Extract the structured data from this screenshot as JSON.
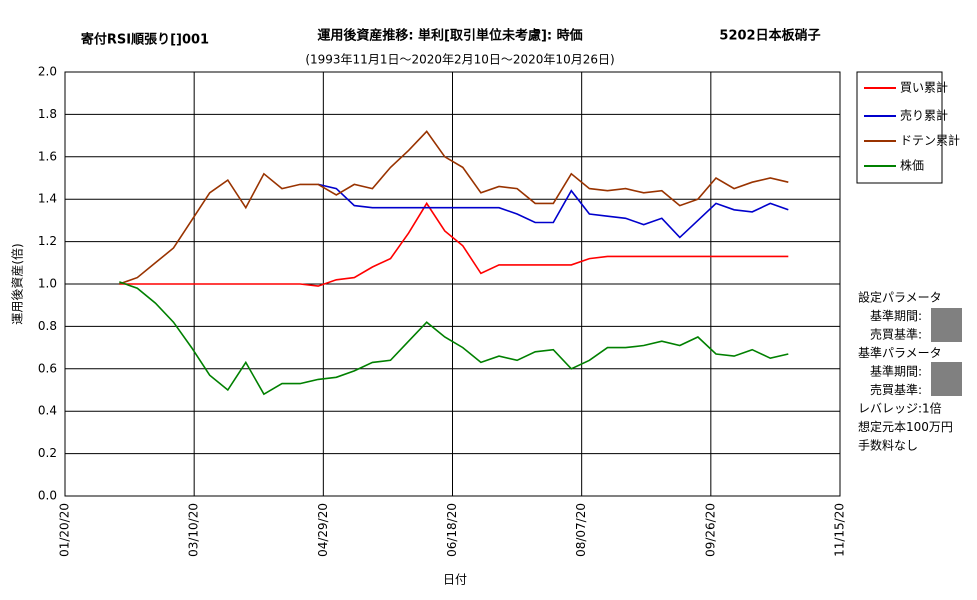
{
  "chart_data": {
    "type": "line",
    "title": "運用後資産推移: 単利[取引単位未考慮]: 時価",
    "subtitle": "(1993年11月1日～2020年2月10日～2020年10月26日)",
    "strategy": "寄付RSI順張り[]001",
    "stock": "5202日本板硝子",
    "y_label": "運用後資産(倍)",
    "x_label": "日付",
    "annotations": [
      "設定パラメータ",
      "基準期間:",
      "売買基準:",
      "基準パラメータ",
      "基準期間:",
      "売買基準:",
      "レバレッジ:1倍",
      "想定元本100万円",
      "手数料なし"
    ],
    "x": [
      "2020-02-10",
      "2020-02-17",
      "2020-02-24",
      "2020-03-02",
      "2020-03-09",
      "2020-03-16",
      "2020-03-23",
      "2020-03-30",
      "2020-04-06",
      "2020-04-13",
      "2020-04-20",
      "2020-04-27",
      "2020-05-04",
      "2020-05-11",
      "2020-05-18",
      "2020-05-25",
      "2020-06-01",
      "2020-06-08",
      "2020-06-15",
      "2020-06-22",
      "2020-06-29",
      "2020-07-06",
      "2020-07-13",
      "2020-07-20",
      "2020-07-27",
      "2020-08-03",
      "2020-08-10",
      "2020-08-17",
      "2020-08-24",
      "2020-08-31",
      "2020-09-07",
      "2020-09-14",
      "2020-09-21",
      "2020-09-28",
      "2020-10-05",
      "2020-10-12",
      "2020-10-19",
      "2020-10-26"
    ],
    "series": [
      {
        "name": "買い累計",
        "color": "#ff0000",
        "values": [
          1.0,
          1.0,
          1.0,
          1.0,
          1.0,
          1.0,
          1.0,
          1.0,
          1.0,
          1.0,
          1.0,
          0.99,
          1.02,
          1.03,
          1.08,
          1.12,
          1.24,
          1.38,
          1.25,
          1.18,
          1.05,
          1.09,
          1.09,
          1.09,
          1.09,
          1.09,
          1.12,
          1.13,
          1.13,
          1.13,
          1.13,
          1.13,
          1.13,
          1.13,
          1.13,
          1.13,
          1.13,
          1.13
        ]
      },
      {
        "name": "売り累計",
        "color": "#0000cc",
        "values": [
          null,
          null,
          null,
          null,
          null,
          null,
          null,
          null,
          null,
          null,
          null,
          1.47,
          1.45,
          1.37,
          1.36,
          1.36,
          1.36,
          1.36,
          1.36,
          1.36,
          1.36,
          1.36,
          1.33,
          1.29,
          1.29,
          1.44,
          1.33,
          1.32,
          1.31,
          1.28,
          1.31,
          1.22,
          1.3,
          1.38,
          1.35,
          1.34,
          1.38,
          1.35
        ]
      },
      {
        "name": "ドテン累計",
        "color": "#993300",
        "values": [
          1.0,
          1.03,
          1.1,
          1.17,
          1.3,
          1.43,
          1.49,
          1.36,
          1.52,
          1.45,
          1.47,
          1.47,
          1.42,
          1.47,
          1.45,
          1.55,
          1.63,
          1.72,
          1.6,
          1.55,
          1.43,
          1.46,
          1.45,
          1.38,
          1.38,
          1.52,
          1.45,
          1.44,
          1.45,
          1.43,
          1.44,
          1.37,
          1.4,
          1.5,
          1.45,
          1.48,
          1.5,
          1.48
        ]
      },
      {
        "name": "株価",
        "color": "#008000",
        "values": [
          1.01,
          0.98,
          0.91,
          0.82,
          0.7,
          0.57,
          0.5,
          0.63,
          0.48,
          0.53,
          0.53,
          0.55,
          0.56,
          0.59,
          0.63,
          0.64,
          0.73,
          0.82,
          0.75,
          0.7,
          0.63,
          0.66,
          0.64,
          0.68,
          0.69,
          0.6,
          0.64,
          0.7,
          0.7,
          0.71,
          0.73,
          0.71,
          0.75,
          0.67,
          0.66,
          0.69,
          0.65,
          0.67
        ]
      }
    ],
    "xlim": [
      "2020-01-20",
      "2020-11-15"
    ],
    "xticks": [
      {
        "value": "2020-01-20",
        "label": "01/20/20"
      },
      {
        "value": "2020-03-10",
        "label": "03/10/20"
      },
      {
        "value": "2020-04-29",
        "label": "04/29/20"
      },
      {
        "value": "2020-06-18",
        "label": "06/18/20"
      },
      {
        "value": "2020-08-07",
        "label": "08/07/20"
      },
      {
        "value": "2020-09-26",
        "label": "09/26/20"
      },
      {
        "value": "2020-11-15",
        "label": "11/15/20"
      }
    ],
    "ylim": [
      0,
      2
    ],
    "yticks": [
      {
        "value": 0,
        "label": "0.0"
      },
      {
        "value": 0.2,
        "label": "0.2"
      },
      {
        "value": 0.4,
        "label": "0.4"
      },
      {
        "value": 0.6,
        "label": "0.6"
      },
      {
        "value": 0.8,
        "label": "0.8"
      },
      {
        "value": 1,
        "label": "1.0"
      },
      {
        "value": 1.2,
        "label": "1.2"
      },
      {
        "value": 1.4,
        "label": "1.4"
      },
      {
        "value": 1.6,
        "label": "1.6"
      },
      {
        "value": 1.8,
        "label": "1.8"
      },
      {
        "value": 2,
        "label": "2.0"
      }
    ],
    "grid": true,
    "legend": "right"
  }
}
